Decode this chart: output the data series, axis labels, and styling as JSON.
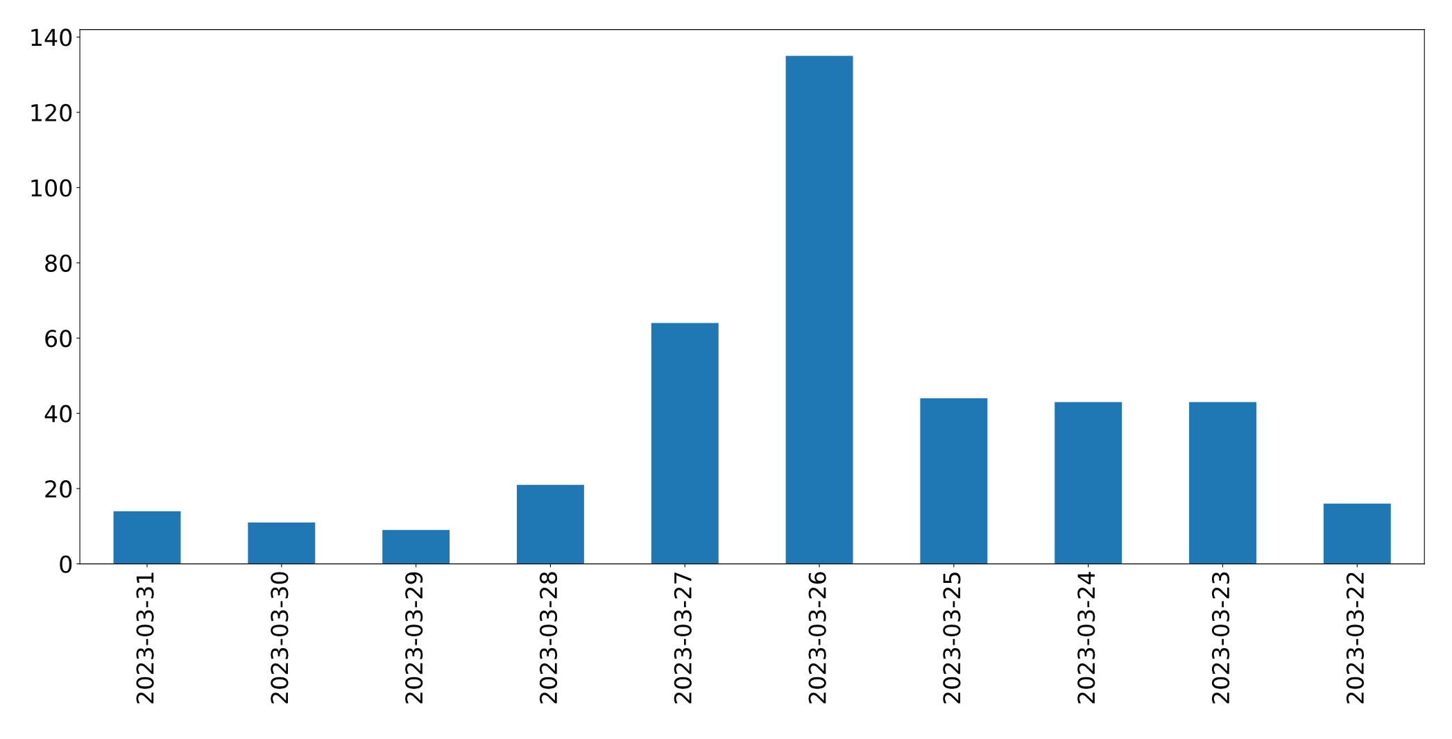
{
  "chart_data": {
    "type": "bar",
    "categories": [
      "2023-03-31",
      "2023-03-30",
      "2023-03-29",
      "2023-03-28",
      "2023-03-27",
      "2023-03-26",
      "2023-03-25",
      "2023-03-24",
      "2023-03-23",
      "2023-03-22"
    ],
    "values": [
      14,
      11,
      9,
      21,
      64,
      135,
      44,
      43,
      43,
      16
    ],
    "color": "#1f77b4",
    "ylim": [
      0,
      142
    ],
    "yticks": [
      0,
      20,
      40,
      60,
      80,
      100,
      120,
      140
    ],
    "grid": false,
    "legend": false
  }
}
